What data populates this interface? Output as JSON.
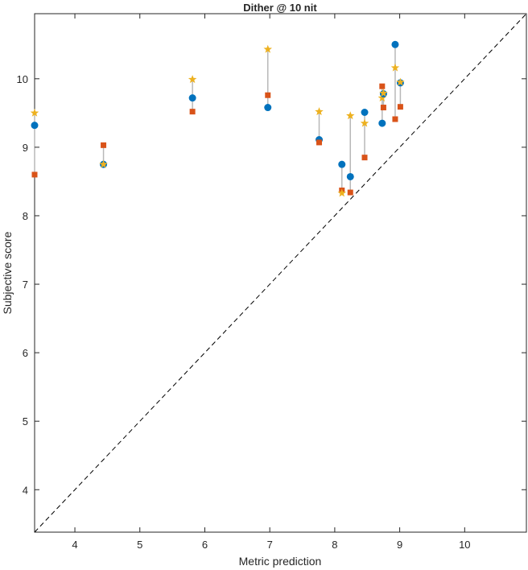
{
  "chart_data": {
    "type": "scatter",
    "title": "Dither @ 10 nit",
    "xlabel": "Metric prediction",
    "ylabel": "Subjective score",
    "xlim": [
      3.38,
      10.95
    ],
    "ylim": [
      3.38,
      10.95
    ],
    "xticks": [
      4,
      5,
      6,
      7,
      8,
      9,
      10
    ],
    "yticks": [
      4,
      5,
      6,
      7,
      8,
      9,
      10
    ],
    "grid": false,
    "reference_line": {
      "type": "identity",
      "style": "dashed",
      "color": "#000000"
    },
    "connector_color": "#b8b8b8",
    "series": [
      {
        "name": "circle",
        "marker": "circle",
        "color": "#0072BD"
      },
      {
        "name": "square",
        "marker": "square",
        "color": "#D95319"
      },
      {
        "name": "star",
        "marker": "star",
        "color": "#EDB120"
      }
    ],
    "points": [
      {
        "x": 3.38,
        "circle": 9.32,
        "square": 8.6,
        "star": 9.5
      },
      {
        "x": 4.44,
        "circle": 8.75,
        "square": 9.03,
        "star": 8.75
      },
      {
        "x": 5.81,
        "circle": 9.72,
        "square": 9.52,
        "star": 9.99
      },
      {
        "x": 6.97,
        "circle": 9.58,
        "square": 9.76,
        "star": 10.43
      },
      {
        "x": 7.76,
        "circle": 9.11,
        "square": 9.07,
        "star": 9.52
      },
      {
        "x": 8.11,
        "circle": 8.75,
        "square": 8.37,
        "star": 8.33
      },
      {
        "x": 8.24,
        "circle": 8.57,
        "square": 8.34,
        "star": 9.46
      },
      {
        "x": 8.46,
        "circle": 9.51,
        "square": 8.85,
        "star": 9.35
      },
      {
        "x": 8.73,
        "circle": 9.35,
        "square": 9.89,
        "star": 9.72
      },
      {
        "x": 8.75,
        "circle": 9.78,
        "square": 9.58,
        "star": 9.79
      },
      {
        "x": 8.93,
        "circle": 10.5,
        "square": 9.41,
        "star": 10.16
      },
      {
        "x": 9.01,
        "circle": 9.94,
        "square": 9.59,
        "star": 9.95
      }
    ]
  }
}
